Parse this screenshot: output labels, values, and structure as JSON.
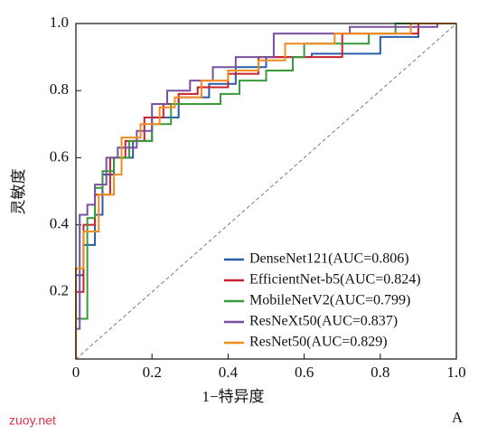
{
  "chart_data": {
    "type": "line",
    "xlabel": "1−特异度",
    "ylabel": "灵敏度",
    "annotations": [
      "zuoy.net",
      "A"
    ],
    "xlim": [
      0,
      1
    ],
    "ylim": [
      0,
      1
    ],
    "xticks": [
      0,
      0.2,
      0.4,
      0.6,
      0.8,
      {
        "value": 1,
        "label": "1.0"
      }
    ],
    "yticks": [
      0.2,
      0.4,
      0.6,
      0.8,
      {
        "value": 1,
        "label": "1.0"
      }
    ],
    "legend": "lower right",
    "series": [
      {
        "name": "DenseNet121(AUC=0.806)",
        "color": "#2a5ca8",
        "x": [
          0,
          0,
          0.02,
          0.02,
          0.05,
          0.05,
          0.07,
          0.07,
          0.1,
          0.1,
          0.15,
          0.15,
          0.2,
          0.2,
          0.27,
          0.27,
          0.35,
          0.35,
          0.42,
          0.42,
          0.5,
          0.5,
          0.62,
          0.62,
          0.8,
          0.8,
          0.9,
          0.9,
          1
        ],
        "values": [
          0,
          0.25,
          0.25,
          0.34,
          0.34,
          0.43,
          0.43,
          0.55,
          0.55,
          0.6,
          0.6,
          0.65,
          0.65,
          0.72,
          0.72,
          0.78,
          0.78,
          0.82,
          0.82,
          0.87,
          0.87,
          0.9,
          0.9,
          0.91,
          0.91,
          0.96,
          0.96,
          1,
          1
        ]
      },
      {
        "name": "EfficientNet-b5(AUC=0.824)",
        "color": "#c8232c",
        "x": [
          0,
          0,
          0.02,
          0.02,
          0.05,
          0.05,
          0.09,
          0.09,
          0.13,
          0.13,
          0.18,
          0.18,
          0.23,
          0.23,
          0.27,
          0.27,
          0.32,
          0.32,
          0.4,
          0.4,
          0.48,
          0.48,
          0.7,
          0.7,
          0.9,
          0.9,
          1
        ],
        "values": [
          0,
          0.2,
          0.2,
          0.4,
          0.4,
          0.49,
          0.49,
          0.6,
          0.6,
          0.65,
          0.65,
          0.72,
          0.72,
          0.76,
          0.76,
          0.79,
          0.79,
          0.81,
          0.81,
          0.85,
          0.85,
          0.9,
          0.9,
          0.97,
          0.97,
          1,
          1
        ]
      },
      {
        "name": "MobileNetV2(AUC=0.799)",
        "color": "#3a9a3a",
        "x": [
          0,
          0,
          0.03,
          0.03,
          0.05,
          0.05,
          0.07,
          0.07,
          0.1,
          0.1,
          0.14,
          0.14,
          0.2,
          0.2,
          0.25,
          0.25,
          0.38,
          0.38,
          0.43,
          0.43,
          0.5,
          0.5,
          0.57,
          0.57,
          0.6,
          0.6,
          0.77,
          0.77,
          0.84,
          0.84,
          1
        ],
        "values": [
          0,
          0.12,
          0.12,
          0.42,
          0.42,
          0.51,
          0.51,
          0.56,
          0.56,
          0.6,
          0.6,
          0.65,
          0.65,
          0.7,
          0.7,
          0.76,
          0.76,
          0.79,
          0.79,
          0.83,
          0.83,
          0.86,
          0.86,
          0.9,
          0.9,
          0.94,
          0.94,
          0.97,
          0.97,
          1,
          1
        ]
      },
      {
        "name": "ResNeXt50(AUC=0.837)",
        "color": "#7b4fa0",
        "x": [
          0,
          0,
          0.01,
          0.01,
          0.03,
          0.03,
          0.05,
          0.05,
          0.08,
          0.08,
          0.11,
          0.11,
          0.16,
          0.16,
          0.2,
          0.2,
          0.24,
          0.24,
          0.3,
          0.3,
          0.36,
          0.36,
          0.42,
          0.42,
          0.52,
          0.52,
          0.72,
          0.72,
          0.95,
          0.95,
          1
        ],
        "values": [
          0,
          0.09,
          0.09,
          0.43,
          0.43,
          0.46,
          0.46,
          0.52,
          0.52,
          0.6,
          0.6,
          0.63,
          0.63,
          0.68,
          0.68,
          0.76,
          0.76,
          0.8,
          0.8,
          0.83,
          0.83,
          0.87,
          0.87,
          0.9,
          0.9,
          0.97,
          0.97,
          0.99,
          0.99,
          1,
          1
        ]
      },
      {
        "name": "ResNet50(AUC=0.829)",
        "color": "#f28c1e",
        "x": [
          0,
          0,
          0.02,
          0.02,
          0.06,
          0.06,
          0.1,
          0.1,
          0.12,
          0.12,
          0.17,
          0.17,
          0.22,
          0.22,
          0.26,
          0.26,
          0.33,
          0.33,
          0.4,
          0.4,
          0.48,
          0.48,
          0.55,
          0.55,
          0.68,
          0.68,
          0.88,
          0.88,
          1
        ],
        "values": [
          0,
          0.27,
          0.27,
          0.38,
          0.38,
          0.49,
          0.49,
          0.55,
          0.55,
          0.66,
          0.66,
          0.7,
          0.7,
          0.75,
          0.75,
          0.78,
          0.78,
          0.83,
          0.83,
          0.86,
          0.86,
          0.89,
          0.89,
          0.94,
          0.94,
          0.97,
          0.97,
          1,
          1
        ]
      }
    ]
  }
}
